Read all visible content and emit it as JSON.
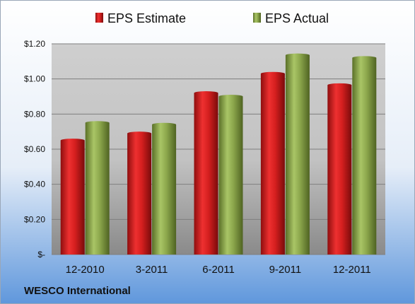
{
  "chart_data": {
    "type": "bar",
    "categories": [
      "12-2010",
      "3-2011",
      "6-2011",
      "9-2011",
      "12-2011"
    ],
    "series": [
      {
        "name": "EPS Estimate",
        "values": [
          0.65,
          0.69,
          0.92,
          1.03,
          0.965
        ],
        "color": "#cc1f1f"
      },
      {
        "name": "EPS Actual",
        "values": [
          0.75,
          0.74,
          0.9,
          1.135,
          1.12
        ],
        "color": "#8aa84a"
      }
    ],
    "ylim": [
      0,
      1.2
    ],
    "yticks": [
      {
        "value": 0,
        "label": "$-"
      },
      {
        "value": 0.2,
        "label": "$0.20"
      },
      {
        "value": 0.4,
        "label": "$0.40"
      },
      {
        "value": 0.6,
        "label": "$0.60"
      },
      {
        "value": 0.8,
        "label": "$0.80"
      },
      {
        "value": 1.0,
        "label": "$1.00"
      },
      {
        "value": 1.2,
        "label": "$1.20"
      }
    ],
    "grid": true,
    "legend_position": "top"
  },
  "footer": {
    "company": "WESCO International"
  }
}
